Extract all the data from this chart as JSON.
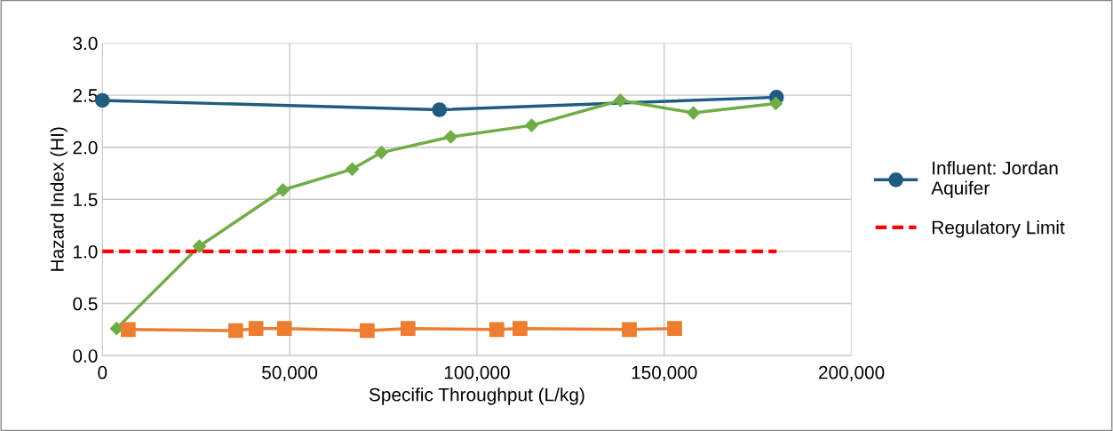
{
  "chart_data": {
    "type": "line",
    "xlabel": "Specific Throughput (L/kg)",
    "ylabel": "Hazard Index (HI)",
    "xlim": [
      0,
      200000
    ],
    "xticks": [
      {
        "value": 0,
        "label": "0"
      },
      {
        "value": 50000,
        "label": "50,000"
      },
      {
        "value": 100000,
        "label": "100,000"
      },
      {
        "value": 150000,
        "label": "150,000"
      },
      {
        "value": 200000,
        "label": "200,000"
      }
    ],
    "ylim": [
      0,
      3
    ],
    "yticks": [
      {
        "value": 0,
        "label": "0.0"
      },
      {
        "value": 0.5,
        "label": "0.5"
      },
      {
        "value": 1,
        "label": "1.0"
      },
      {
        "value": 1.5,
        "label": "1.5"
      },
      {
        "value": 2,
        "label": "2.0"
      },
      {
        "value": 2.5,
        "label": "2.5"
      },
      {
        "value": 3,
        "label": "3.0"
      }
    ],
    "grid": true,
    "legend": "right",
    "series": [
      {
        "name": "Influent: Jordan\nAquifer",
        "color": "#1f5c80",
        "marker": "circle",
        "x": [
          0,
          90000,
          180000
        ],
        "values": [
          2.45,
          2.36,
          2.48
        ]
      },
      {
        "color": "#70ad47",
        "marker": "diamond",
        "x": [
          3800,
          25900,
          48200,
          66700,
          74500,
          93000,
          114600,
          138300,
          157800,
          179800
        ],
        "values": [
          0.26,
          1.05,
          1.59,
          1.79,
          1.95,
          2.1,
          2.21,
          2.45,
          2.33,
          2.42
        ]
      },
      {
        "color": "#ed7d31",
        "marker": "square",
        "x": [
          6900,
          35600,
          41000,
          48600,
          70700,
          81600,
          105300,
          111500,
          140700,
          152800
        ],
        "values": [
          0.25,
          0.24,
          0.26,
          0.26,
          0.24,
          0.26,
          0.25,
          0.26,
          0.25,
          0.26
        ]
      },
      {
        "name": "Regulatory Limit",
        "color": "#ff0000",
        "marker": "none",
        "line_style": "dashed",
        "x": [
          0,
          180000
        ],
        "values": [
          1,
          1
        ]
      }
    ]
  }
}
